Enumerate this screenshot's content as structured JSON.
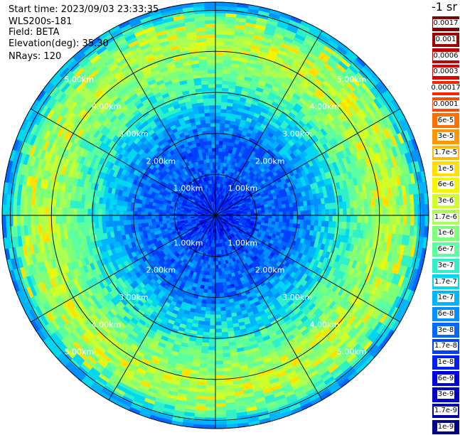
{
  "header": {
    "start_time": "Start time: 2023/09/03 23:33:35",
    "instrument": "WLS200s-181",
    "field": "Field: BETA",
    "elevation": "Elevation(deg): 35.30",
    "nrays": "NRays: 120"
  },
  "units_label": "-1 sr",
  "chart_data": {
    "type": "heatmap",
    "projection": "polar (PPI scan)",
    "rays": 120,
    "range_rings_km": [
      1,
      2,
      3,
      4,
      5
    ],
    "ring_labels": [
      "1.00km",
      "2.00km",
      "3.00km",
      "4.00km",
      "5.00km"
    ],
    "radial_spokes": 12,
    "max_range_km": 5.2,
    "colorbar": {
      "labels": [
        "0.0017",
        "0.001",
        "0.0006",
        "0.0003",
        "0.00017",
        "0.0001",
        "6e-5",
        "3e-5",
        "1.7e-5",
        "1e-5",
        "6e-6",
        "3e-6",
        "1.7e-6",
        "1e-6",
        "6e-7",
        "3e-7",
        "1.7e-7",
        "1e-7",
        "6e-8",
        "3e-8",
        "1.7e-8",
        "1e-8",
        "6e-9",
        "3e-9",
        "1.7e-9",
        "1e-9"
      ],
      "colors": [
        "#800000",
        "#9c0000",
        "#c00000",
        "#e00000",
        "#ff2000",
        "#ff4a00",
        "#ff7000",
        "#ff9600",
        "#ffbb00",
        "#ffe000",
        "#f5f500",
        "#d0ff28",
        "#aaff50",
        "#80ff78",
        "#5cffa0",
        "#30f0c8",
        "#00d8f0",
        "#00b4ff",
        "#0090ff",
        "#0068ff",
        "#0040ff",
        "#0020f0",
        "#0000e0",
        "#0000c8",
        "#0000a8",
        "#000088"
      ]
    },
    "intensity_profile_note": "",
    "radial_profile_index": [
      20,
      21,
      20,
      20,
      19,
      19,
      19,
      18,
      17,
      16,
      15,
      14,
      13,
      12,
      12,
      13,
      15,
      18
    ]
  }
}
